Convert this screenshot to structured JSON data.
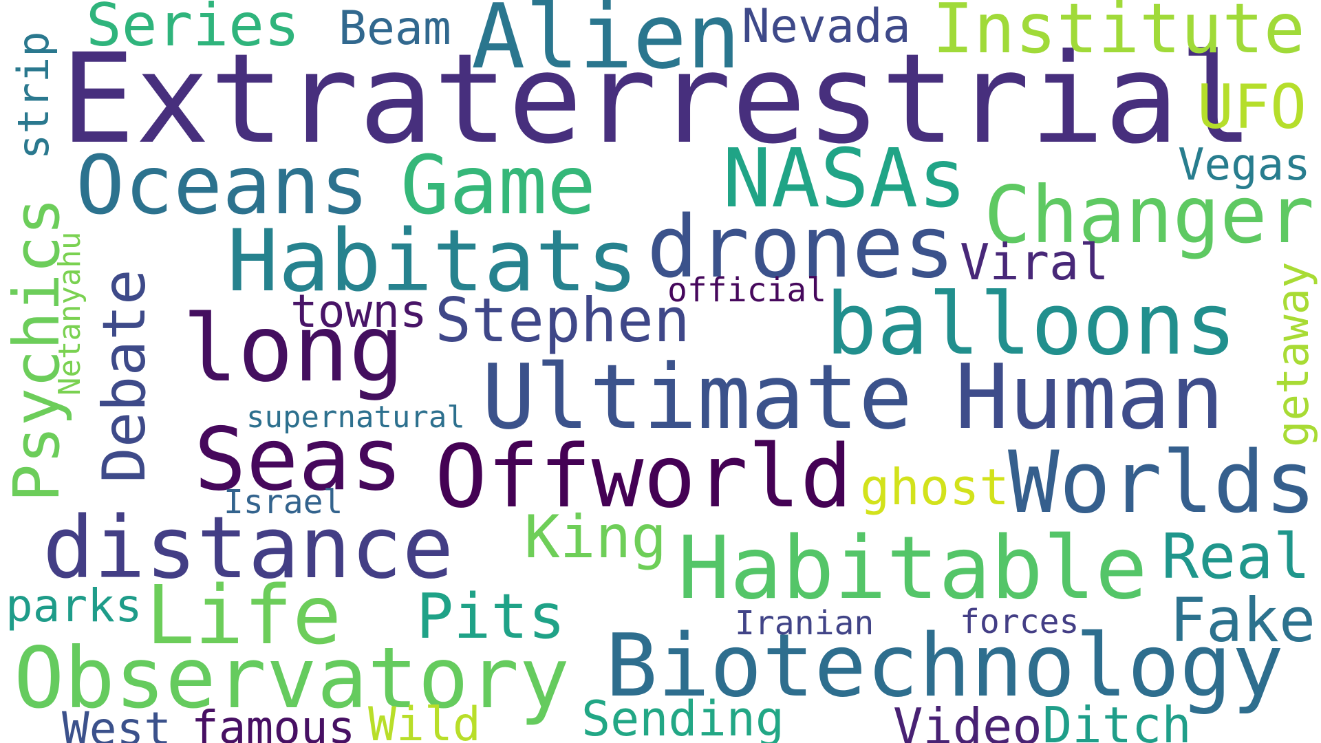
{
  "word_cloud": {
    "words": [
      {
        "id": "extraterrestrial",
        "text": "Extraterrestrial",
        "color": "#472f7d"
      },
      {
        "id": "alien",
        "text": "Alien",
        "color": "#2a768e"
      },
      {
        "id": "institute",
        "text": "Institute",
        "color": "#a0da39"
      },
      {
        "id": "series",
        "text": "Series",
        "color": "#2fb47c"
      },
      {
        "id": "beam",
        "text": "Beam",
        "color": "#31688e"
      },
      {
        "id": "nevada",
        "text": "Nevada",
        "color": "#3e4989"
      },
      {
        "id": "ufo",
        "text": "UFO",
        "color": "#b5de2b"
      },
      {
        "id": "strip",
        "text": "strip",
        "color": "#2a788e"
      },
      {
        "id": "oceans",
        "text": "Oceans",
        "color": "#2c728e"
      },
      {
        "id": "game",
        "text": "Game",
        "color": "#35b779"
      },
      {
        "id": "nasas",
        "text": "NASAs",
        "color": "#20a486"
      },
      {
        "id": "vegas",
        "text": "Vegas",
        "color": "#287d8e"
      },
      {
        "id": "changer",
        "text": "Changer",
        "color": "#5ec962"
      },
      {
        "id": "habitats",
        "text": "Habitats",
        "color": "#26828e"
      },
      {
        "id": "drones",
        "text": "drones",
        "color": "#3b528b"
      },
      {
        "id": "viral",
        "text": "Viral",
        "color": "#482878"
      },
      {
        "id": "psychics",
        "text": "Psychics",
        "color": "#6ccd5a"
      },
      {
        "id": "netanyahu",
        "text": "Netanyahu",
        "color": "#7ad151"
      },
      {
        "id": "debate",
        "text": "Debate",
        "color": "#3e4a89"
      },
      {
        "id": "long",
        "text": "long",
        "color": "#440f5f"
      },
      {
        "id": "towns",
        "text": "towns",
        "color": "#481467"
      },
      {
        "id": "stephen",
        "text": "Stephen",
        "color": "#3f4788"
      },
      {
        "id": "official",
        "text": "official",
        "color": "#46085c"
      },
      {
        "id": "balloons",
        "text": "balloons",
        "color": "#218f8d"
      },
      {
        "id": "getaway",
        "text": "getaway",
        "color": "#a8db34"
      },
      {
        "id": "ultimate",
        "text": "Ultimate",
        "color": "#3b528b"
      },
      {
        "id": "human",
        "text": "Human",
        "color": "#3e4c8a"
      },
      {
        "id": "supernatural",
        "text": "supernatural",
        "color": "#2d708e"
      },
      {
        "id": "seas",
        "text": "Seas",
        "color": "#46085c"
      },
      {
        "id": "offworld",
        "text": "Offworld",
        "color": "#440154"
      },
      {
        "id": "ghost",
        "text": "ghost",
        "color": "#d2e21b"
      },
      {
        "id": "worlds",
        "text": "Worlds",
        "color": "#355f8d"
      },
      {
        "id": "israel",
        "text": "Israel",
        "color": "#33638d"
      },
      {
        "id": "distance",
        "text": "distance",
        "color": "#433e85"
      },
      {
        "id": "king",
        "text": "King",
        "color": "#6ece58"
      },
      {
        "id": "habitable",
        "text": "Habitable",
        "color": "#54c568"
      },
      {
        "id": "real",
        "text": "Real",
        "color": "#1f968b"
      },
      {
        "id": "parks",
        "text": "parks",
        "color": "#1e9c89"
      },
      {
        "id": "life",
        "text": "Life",
        "color": "#6ccd5a"
      },
      {
        "id": "pits",
        "text": "Pits",
        "color": "#1fa287"
      },
      {
        "id": "fake",
        "text": "Fake",
        "color": "#2c728e"
      },
      {
        "id": "iranian",
        "text": "Iranian",
        "color": "#414487"
      },
      {
        "id": "forces",
        "text": "forces",
        "color": "#433e85"
      },
      {
        "id": "observatory",
        "text": "Observatory",
        "color": "#65cb5e"
      },
      {
        "id": "biotechnology",
        "text": "Biotechnology",
        "color": "#2e6e8e"
      },
      {
        "id": "sending",
        "text": "Sending",
        "color": "#22a785"
      },
      {
        "id": "west",
        "text": "West",
        "color": "#3b518b"
      },
      {
        "id": "famous",
        "text": "famous",
        "color": "#471063"
      },
      {
        "id": "wild",
        "text": "Wild",
        "color": "#b8de29"
      },
      {
        "id": "video",
        "text": "Video",
        "color": "#482173"
      },
      {
        "id": "ditch",
        "text": "Ditch",
        "color": "#1f9e89"
      }
    ]
  }
}
